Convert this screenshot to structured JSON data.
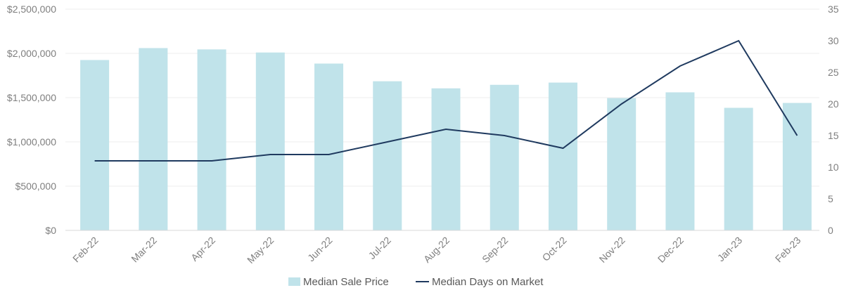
{
  "chart_data": {
    "type": "bar+line",
    "categories": [
      "Feb-22",
      "Mar-22",
      "Apr-22",
      "May-22",
      "Jun-22",
      "Jul-22",
      "Aug-22",
      "Sep-22",
      "Oct-22",
      "Nov-22",
      "Dec-22",
      "Jan-23",
      "Feb-23"
    ],
    "series": [
      {
        "name": "Median Sale Price",
        "type": "bar",
        "axis": "left",
        "color": "#c0e3ea",
        "values": [
          1925000,
          2060000,
          2045000,
          2010000,
          1885000,
          1685000,
          1605000,
          1645000,
          1670000,
          1495000,
          1560000,
          1385000,
          1440000
        ]
      },
      {
        "name": "Median Days on Market",
        "type": "line",
        "axis": "right",
        "color": "#1f3a5f",
        "values": [
          11,
          11,
          11,
          12,
          12,
          14,
          16,
          15,
          13,
          20,
          26,
          30,
          15
        ]
      }
    ],
    "y_left": {
      "ylim": [
        0,
        2500000
      ],
      "ticks": [
        0,
        500000,
        1000000,
        1500000,
        2000000,
        2500000
      ],
      "tick_labels": [
        "$0",
        "$500,000",
        "$1,000,000",
        "$1,500,000",
        "$2,000,000",
        "$2,500,000"
      ]
    },
    "y_right": {
      "ylim": [
        0,
        35
      ],
      "ticks": [
        0,
        5,
        10,
        15,
        20,
        25,
        30,
        35
      ],
      "tick_labels": [
        "0",
        "5",
        "10",
        "15",
        "20",
        "25",
        "30",
        "35"
      ]
    },
    "grid": true,
    "legend_position": "bottom"
  }
}
